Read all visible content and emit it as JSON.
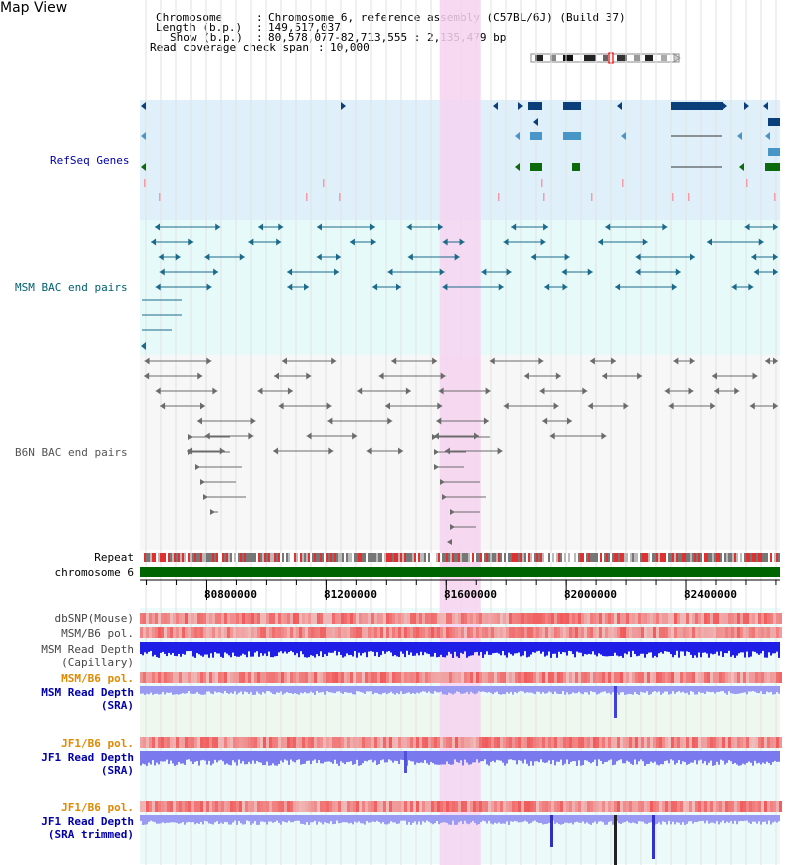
{
  "title": "Map View",
  "info": {
    "chromosome_key": "Chromosome",
    "chromosome_value": "Chromosome 6, reference assembly (C57BL/6J) (Build 37)",
    "length_key": "Length (b.p.)",
    "length_value": "149,517,037",
    "show_key": "Show (b.p.)",
    "show_value": "80,578,077-82,713,555 : 2,135,479 bp",
    "span_key": "Read coverage check span",
    "span_value": "10,000"
  },
  "tracks": {
    "refseq": "RefSeq Genes",
    "msm_bac": "MSM BAC end pairs",
    "b6n_bac": "B6N BAC end pairs",
    "repeat": "Repeat",
    "chromosome": "chromosome 6",
    "dbsnp": "dbSNP(Mouse)",
    "msm_b6_pol": "MSM/B6 pol.",
    "msm_depth_cap_1": "MSM Read Depth",
    "msm_depth_cap_2": "(Capillary)",
    "msm_b6_pol_2": "MSM/B6 pol.",
    "msm_depth_sra_1": "MSM Read Depth",
    "msm_depth_sra_2": "(SRA)",
    "jf1_b6_pol": "JF1/B6 pol.",
    "jf1_depth_sra_1": "JF1 Read Depth",
    "jf1_depth_sra_2": "(SRA)",
    "jf1_b6_pol_2": "JF1/B6 pol.",
    "jf1_depth_trim_1": "JF1 Read Depth",
    "jf1_depth_trim_2": "(SRA trimmed)"
  },
  "axis": {
    "tick_labels": [
      "80800000",
      "81200000",
      "81600000",
      "82000000",
      "82400000"
    ],
    "tick_values": [
      80800000,
      81200000,
      81600000,
      82000000,
      82400000
    ],
    "range": [
      80578077,
      82713555
    ],
    "highlight_range": [
      81578000,
      81715000
    ]
  },
  "colors": {
    "refseq_bg": "#dff0fb",
    "msm_bg": "#e6fafa",
    "b6n_bg": "#f7f7f7",
    "highlight": "#f6d4f0",
    "chromosome_bar": "#006400",
    "gene_dark": "#0a3f7a",
    "gene_mid": "#4a95c8",
    "gene_green": "#0b6b0b",
    "msm_bac": "#1c6a8a",
    "b6n_bac": "#6b6b6b",
    "label_blue": "#0000aa",
    "label_teal": "#006070",
    "label_orange": "#e08a00"
  }
}
